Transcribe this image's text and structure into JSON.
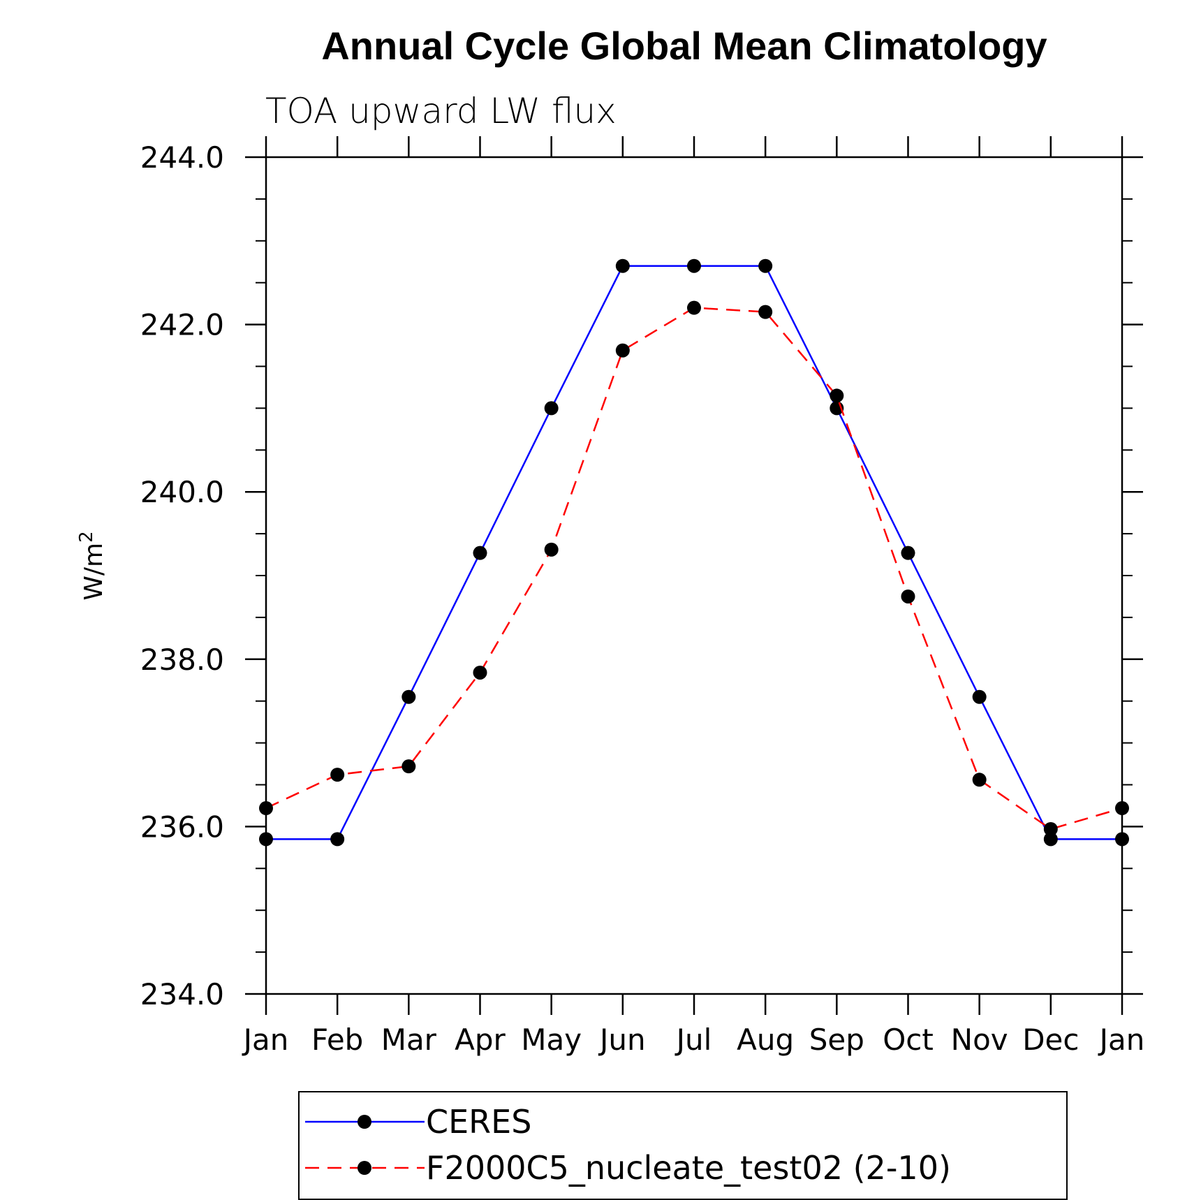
{
  "chart_data": {
    "type": "line",
    "title": "Annual Cycle Global Mean Climatology",
    "subtitle": "TOA upward LW flux",
    "ylabel": "W/m",
    "ylabel_superscript": "2",
    "xlabel": "",
    "categories": [
      "Jan",
      "Feb",
      "Mar",
      "Apr",
      "May",
      "Jun",
      "Jul",
      "Aug",
      "Sep",
      "Oct",
      "Nov",
      "Dec",
      "Jan"
    ],
    "ylim": [
      234.0,
      244.0
    ],
    "yticks": [
      "234.0",
      "236.0",
      "238.0",
      "240.0",
      "242.0",
      "244.0"
    ],
    "ytick_values": [
      234.0,
      236.0,
      238.0,
      240.0,
      242.0,
      244.0
    ],
    "grid": false,
    "legend_position": "bottom",
    "series": [
      {
        "name": "CERES",
        "color": "#0000ff",
        "line_style": "solid",
        "marker": "circle",
        "values": [
          235.85,
          235.85,
          237.55,
          239.27,
          241.0,
          242.7,
          242.7,
          242.7,
          241.0,
          239.27,
          237.55,
          235.85,
          235.85
        ]
      },
      {
        "name": "F2000C5_nucleate_test02 (2-10)",
        "color": "#ff0000",
        "line_style": "dashed",
        "marker": "circle",
        "values": [
          236.22,
          236.62,
          236.72,
          237.84,
          239.31,
          241.69,
          242.2,
          242.15,
          241.15,
          238.75,
          236.56,
          235.97,
          236.22
        ]
      }
    ]
  }
}
